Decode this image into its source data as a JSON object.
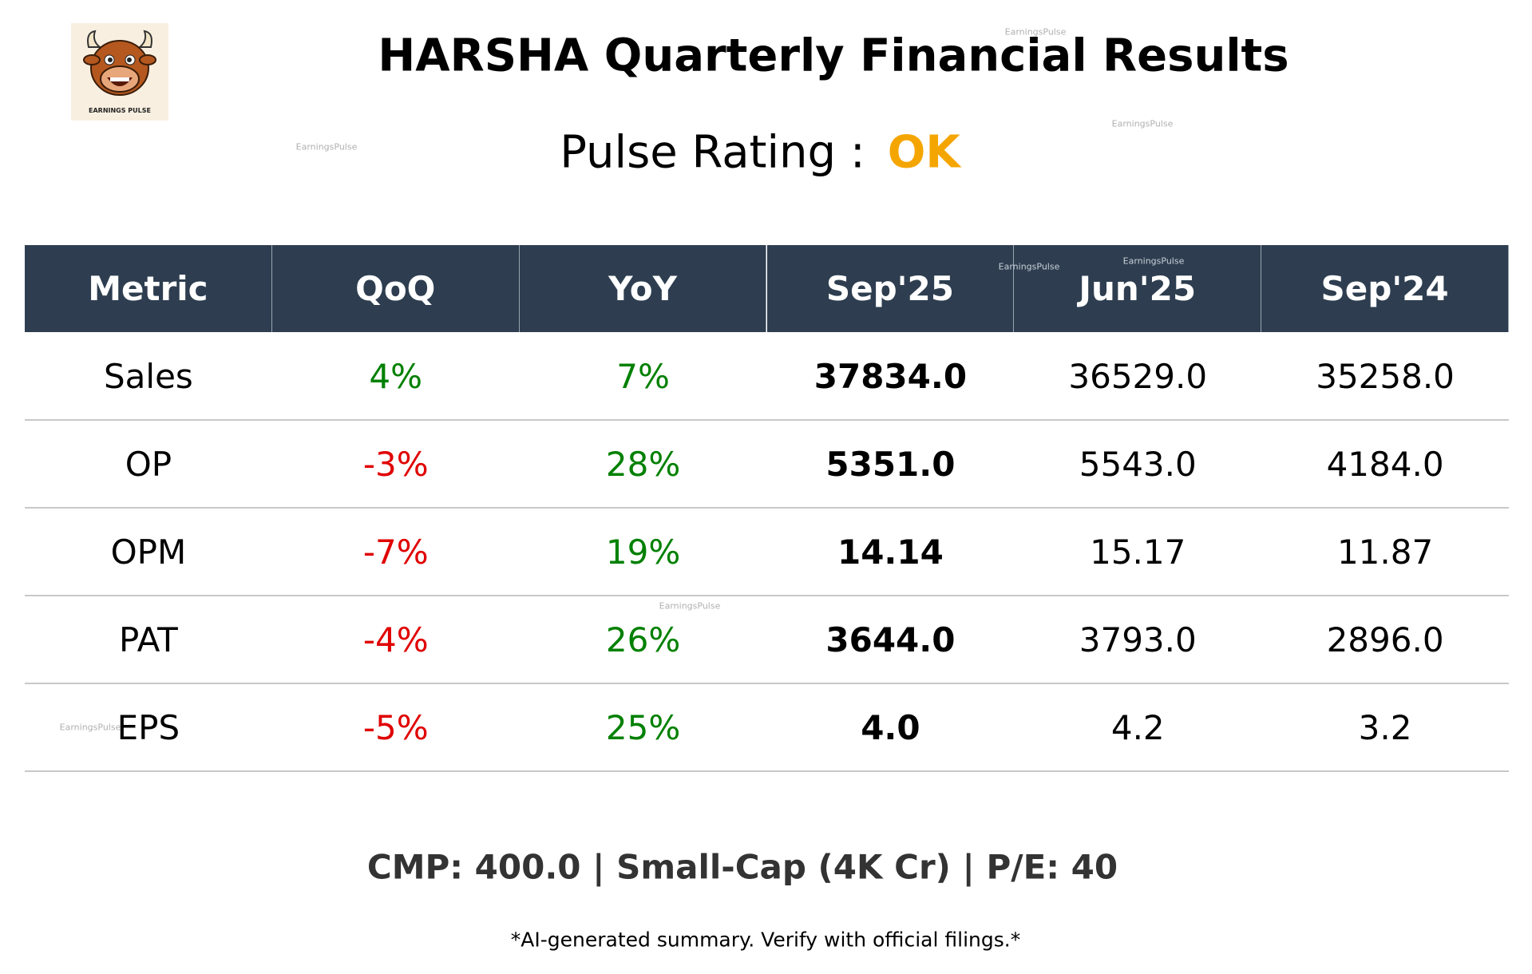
{
  "header": {
    "title": "HARSHA Quarterly Financial Results",
    "rating_label": "Pulse Rating :",
    "rating": "OK"
  },
  "logo": {
    "text": "EARNINGS PULSE"
  },
  "watermark": "EarningsPulse",
  "table": {
    "columns": [
      "Metric",
      "QoQ",
      "YoY",
      "Sep'25",
      "Jun'25",
      "Sep'24"
    ],
    "rows": [
      [
        "Sales",
        "4%",
        "7%",
        "37834.0",
        "36529.0",
        "35258.0"
      ],
      [
        "OP",
        "-3%",
        "28%",
        "5351.0",
        "5543.0",
        "4184.0"
      ],
      [
        "OPM",
        "-7%",
        "19%",
        "14.14",
        "15.17",
        "11.87"
      ],
      [
        "PAT",
        "-4%",
        "26%",
        "3644.0",
        "3793.0",
        "2896.0"
      ],
      [
        "EPS",
        "-5%",
        "25%",
        "4.0",
        "4.2",
        "3.2"
      ]
    ]
  },
  "footer": {
    "summary": "CMP: 400.0 | Small-Cap (4K Cr) | P/E: 40",
    "disclaimer": "*AI-generated summary. Verify with official filings.*"
  }
}
